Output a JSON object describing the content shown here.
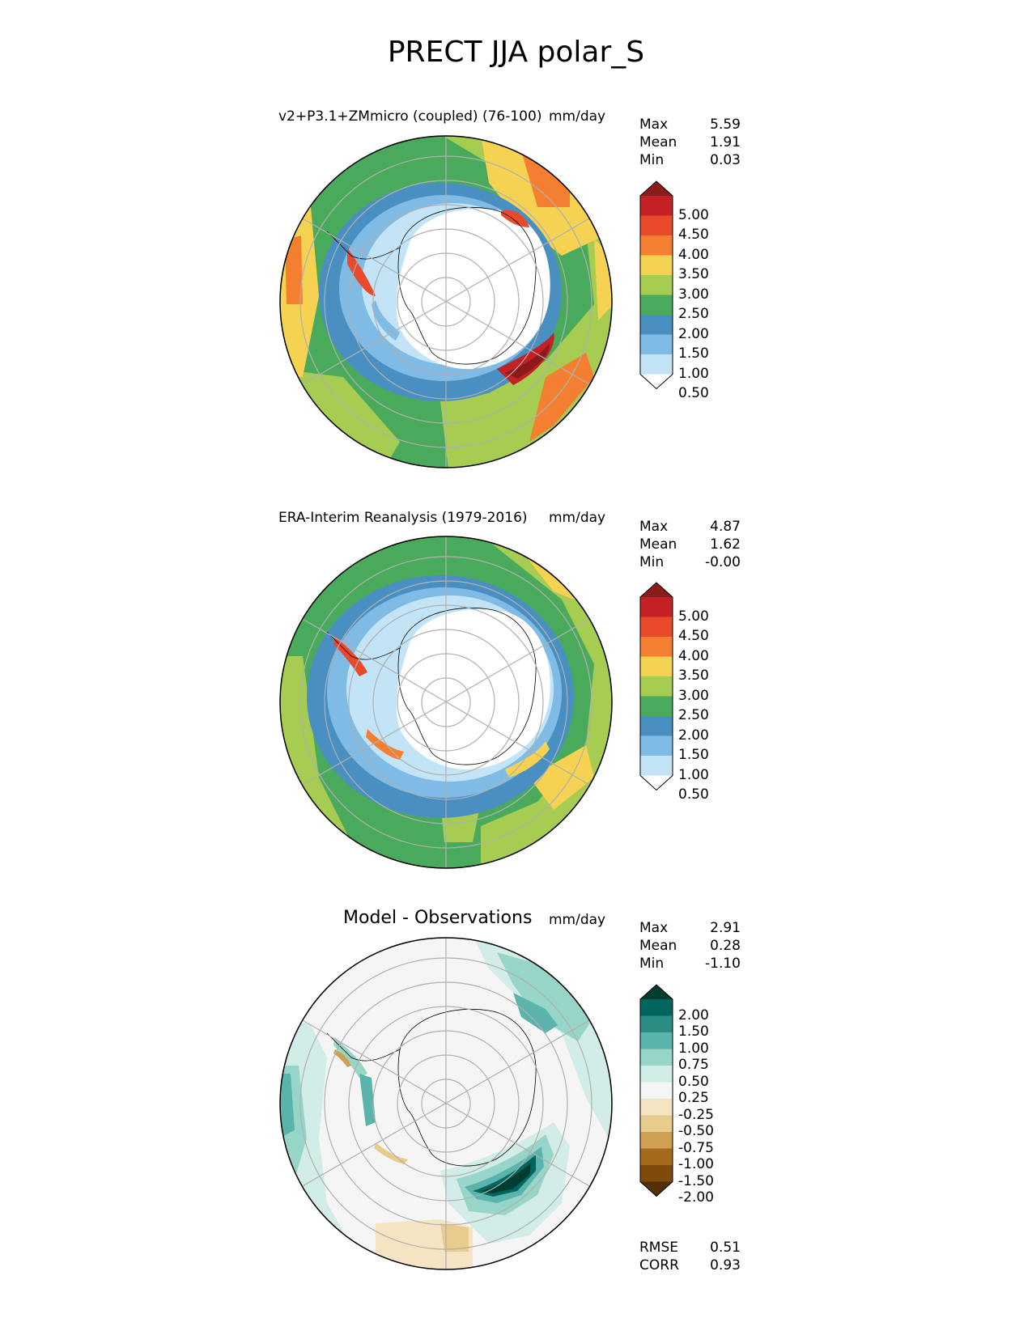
{
  "title": "PRECT JJA polar_S",
  "panels": [
    {
      "id": "test",
      "title": "v2+P3.1+ZMmicro (coupled) (76-100)",
      "units": "mm/day",
      "stats": [
        {
          "label": "Max",
          "value": "5.59"
        },
        {
          "label": "Mean",
          "value": "1.91"
        },
        {
          "label": "Min",
          "value": "0.03"
        }
      ],
      "colorbar": {
        "ticks": [
          "5.00",
          "4.50",
          "4.00",
          "3.50",
          "3.00",
          "2.50",
          "2.00",
          "1.50",
          "1.00",
          "0.50"
        ],
        "colors": [
          "#8b1a1a",
          "#c42127",
          "#e84a2a",
          "#f57f30",
          "#f5d252",
          "#a6cc52",
          "#4aaa5c",
          "#4a8fc2",
          "#7fbbe5",
          "#c2e4f6",
          "#ffffff"
        ]
      }
    },
    {
      "id": "reference",
      "title": "ERA-Interim Reanalysis (1979-2016)",
      "units": "mm/day",
      "stats": [
        {
          "label": "Max",
          "value": "4.87"
        },
        {
          "label": "Mean",
          "value": "1.62"
        },
        {
          "label": "Min",
          "value": "-0.00"
        }
      ],
      "colorbar": {
        "ticks": [
          "5.00",
          "4.50",
          "4.00",
          "3.50",
          "3.00",
          "2.50",
          "2.00",
          "1.50",
          "1.00",
          "0.50"
        ],
        "colors": [
          "#8b1a1a",
          "#c42127",
          "#e84a2a",
          "#f57f30",
          "#f5d252",
          "#a6cc52",
          "#4aaa5c",
          "#4a8fc2",
          "#7fbbe5",
          "#c2e4f6",
          "#ffffff"
        ]
      }
    },
    {
      "id": "diff",
      "title": "Model - Observations",
      "units": "mm/day",
      "stats": [
        {
          "label": "Max",
          "value": "2.91"
        },
        {
          "label": "Mean",
          "value": "0.28"
        },
        {
          "label": "Min",
          "value": "-1.10"
        }
      ],
      "colorbar": {
        "ticks": [
          "2.00",
          "1.50",
          "1.00",
          "0.75",
          "0.50",
          "0.25",
          "-0.25",
          "-0.50",
          "-0.75",
          "-1.00",
          "-1.50",
          "-2.00"
        ],
        "colors": [
          "#003c30",
          "#01665e",
          "#2a8c82",
          "#5ab4ac",
          "#97d5c9",
          "#d2ece7",
          "#f5f5f5",
          "#f4e4c1",
          "#e8cc8e",
          "#cf9f52",
          "#a56b1c",
          "#7e4b0b",
          "#543005"
        ]
      },
      "metrics": [
        {
          "label": "RMSE",
          "value": "0.51"
        },
        {
          "label": "CORR",
          "value": "0.93"
        }
      ]
    }
  ]
}
